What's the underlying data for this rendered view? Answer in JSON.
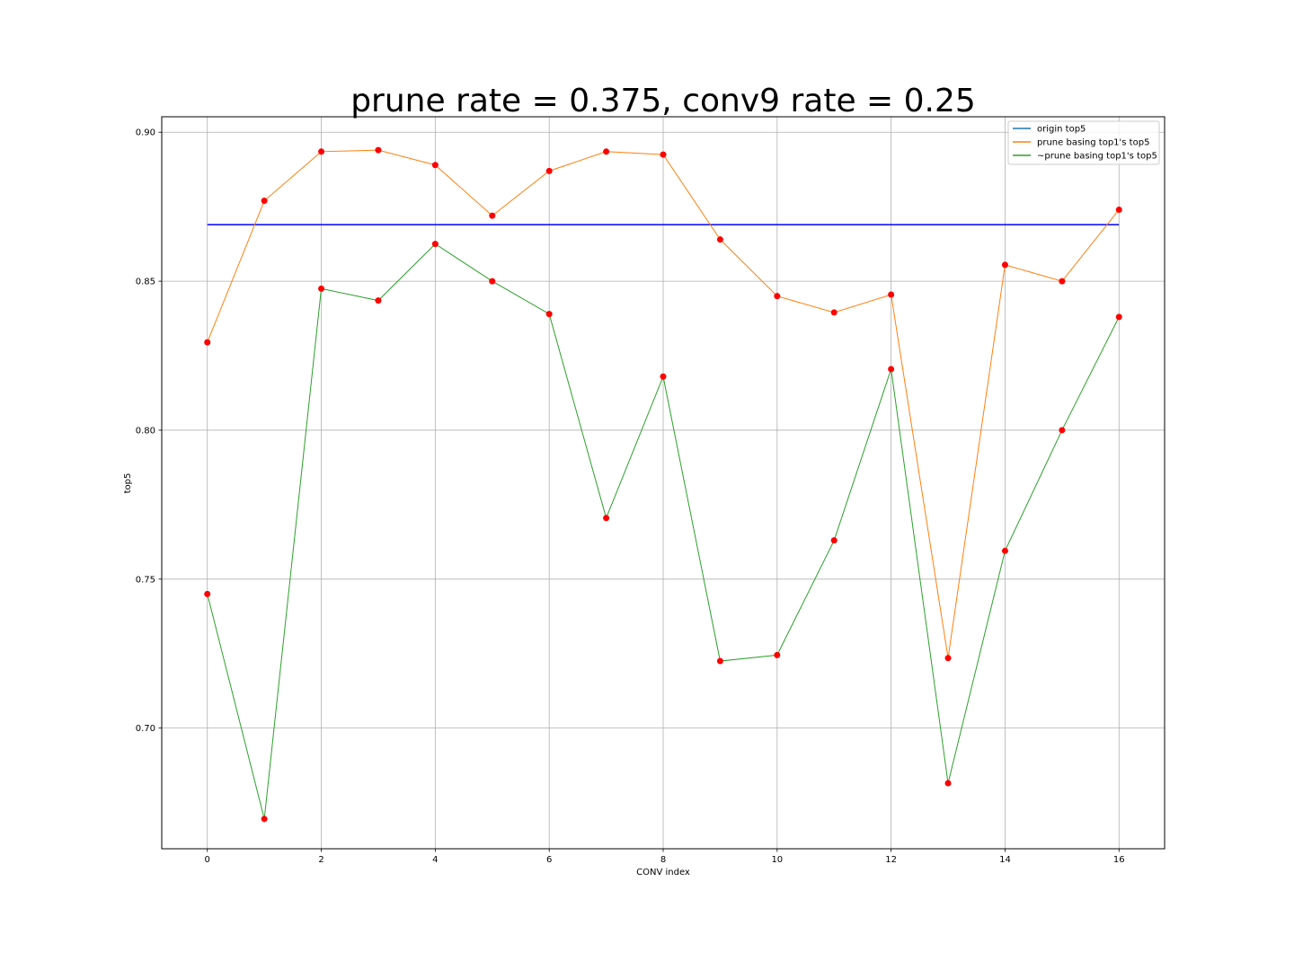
{
  "chart_data": {
    "type": "line",
    "title": "prune rate = 0.375, conv9 rate = 0.25",
    "xlabel": "CONV index",
    "ylabel": "top5",
    "xlim": [
      -0.8,
      16.8
    ],
    "ylim": [
      0.6595,
      0.9052
    ],
    "xticks": [
      0,
      2,
      4,
      6,
      8,
      10,
      12,
      14,
      16
    ],
    "yticks": [
      0.7,
      0.75,
      0.8,
      0.85,
      0.9
    ],
    "ytick_labels": [
      "0.70",
      "0.75",
      "0.80",
      "0.85",
      "0.90"
    ],
    "grid": true,
    "legend_position": "top-right",
    "marker_color": "#ff0000",
    "x": [
      0,
      1,
      2,
      3,
      4,
      5,
      6,
      7,
      8,
      9,
      10,
      11,
      12,
      13,
      14,
      15,
      16
    ],
    "series": [
      {
        "name": "origin top5",
        "legend_color": "#1f77b4",
        "line_color": "#0000ff",
        "markers": false,
        "values": [
          0.869,
          0.869,
          0.869,
          0.869,
          0.869,
          0.869,
          0.869,
          0.869,
          0.869,
          0.869,
          0.869,
          0.869,
          0.869,
          0.869,
          0.869,
          0.869,
          0.869
        ]
      },
      {
        "name": "prune basing top1's top5",
        "legend_color": "#ff7f0e",
        "line_color": "#ff7f0e",
        "markers": true,
        "values": [
          0.8295,
          0.877,
          0.8935,
          0.894,
          0.889,
          0.872,
          0.887,
          0.8935,
          0.8925,
          0.864,
          0.845,
          0.8395,
          0.8455,
          0.7235,
          0.8555,
          0.85,
          0.874
        ]
      },
      {
        "name": "~prune basing top1's top5",
        "legend_color": "#2ca02c",
        "line_color": "#2ca02c",
        "markers": true,
        "values": [
          0.745,
          0.6695,
          0.8475,
          0.8435,
          0.8625,
          0.85,
          0.839,
          0.7705,
          0.818,
          0.7225,
          0.7245,
          0.763,
          0.8205,
          0.6815,
          0.7595,
          0.8,
          0.838
        ]
      }
    ]
  }
}
